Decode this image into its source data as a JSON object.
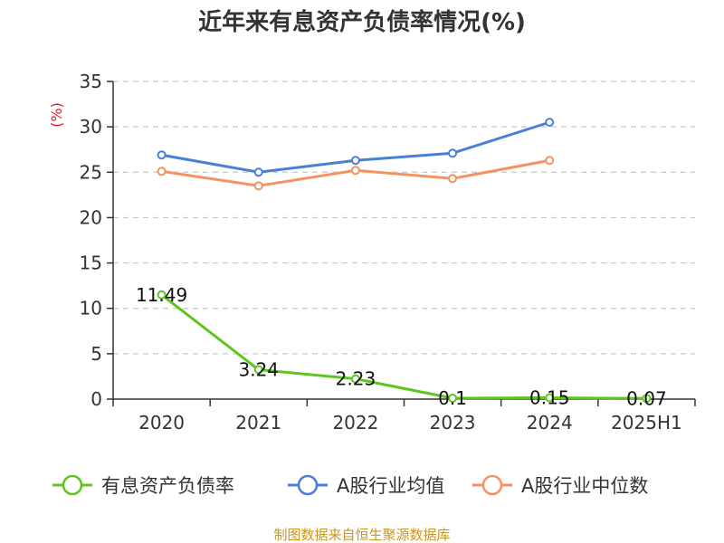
{
  "chart_data": {
    "type": "line",
    "title": "近年来有息资产负债率情况(%)",
    "ylabel": "(%)",
    "xlabel": "",
    "categories": [
      "2020",
      "2021",
      "2022",
      "2023",
      "2024",
      "2025H1"
    ],
    "ylim": [
      0,
      35
    ],
    "yticks": [
      0,
      5,
      10,
      15,
      20,
      25,
      30,
      35
    ],
    "grid": "horizontal-dashed",
    "legend_position": "bottom",
    "series": [
      {
        "name": "有息资产负债率",
        "color": "#5fc41f",
        "values": [
          11.49,
          3.24,
          2.23,
          0.1,
          0.15,
          0.07
        ],
        "labels": [
          "11.49",
          "3.24",
          "2.23",
          "0.1",
          "0.15",
          "0.07"
        ]
      },
      {
        "name": "A股行业均值",
        "color": "#4a7fd8",
        "values": [
          26.9,
          25.0,
          26.3,
          27.1,
          30.5,
          null
        ]
      },
      {
        "name": "A股行业中位数",
        "color": "#f59262",
        "values": [
          25.1,
          23.5,
          25.2,
          24.3,
          26.3,
          null
        ]
      }
    ]
  },
  "source": "制图数据来自恒生聚源数据库"
}
